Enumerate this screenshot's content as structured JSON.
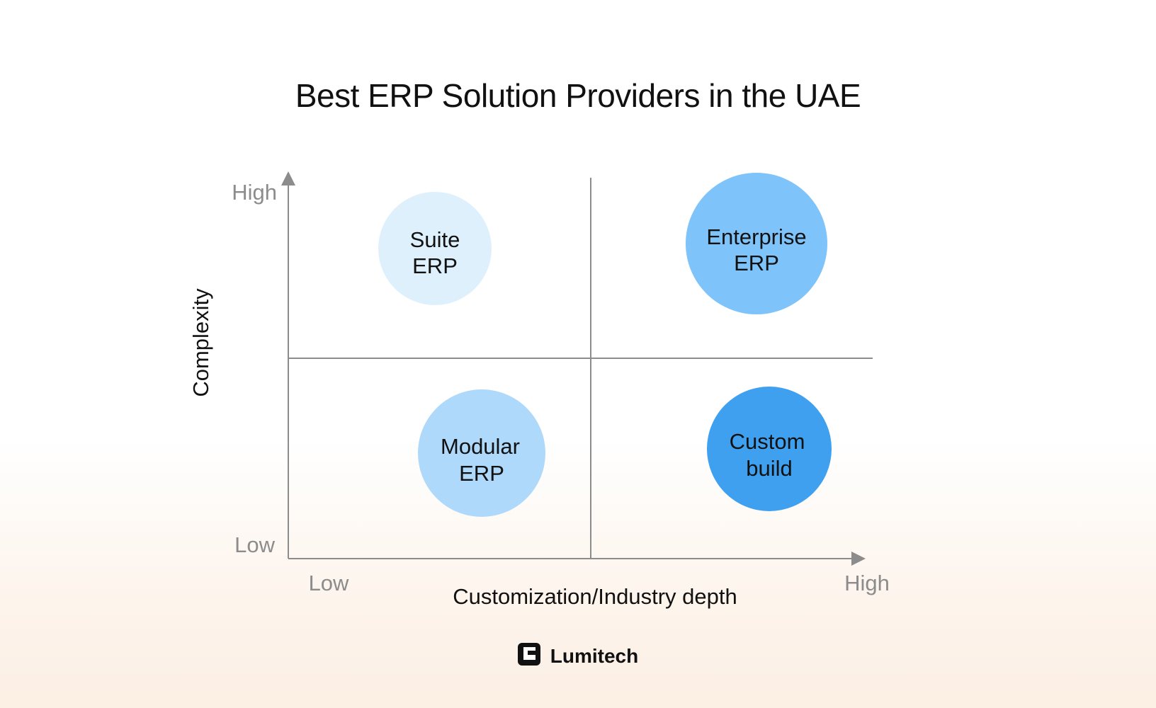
{
  "title": "Best ERP Solution Providers in the UAE",
  "axes": {
    "y_label": "Complexity",
    "x_label": "Customization/Industry depth",
    "y_high": "High",
    "y_low": "Low",
    "x_low": "Low",
    "x_high": "High"
  },
  "bubbles": [
    {
      "name": "suite-erp",
      "lines": [
        "Suite",
        "ERP"
      ],
      "color": "#dff0fd"
    },
    {
      "name": "enterprise-erp",
      "lines": [
        "Enterprise",
        "ERP"
      ],
      "color": "#7fc3fb"
    },
    {
      "name": "modular-erp",
      "lines": [
        "Modular",
        "ERP"
      ],
      "color": "#afd9fa"
    },
    {
      "name": "custom-build",
      "lines": [
        "Custom",
        "build"
      ],
      "color": "#3ea0ef"
    }
  ],
  "brand": {
    "name": "Lumitech",
    "logo_icon": "lumitech-logo-icon"
  }
}
